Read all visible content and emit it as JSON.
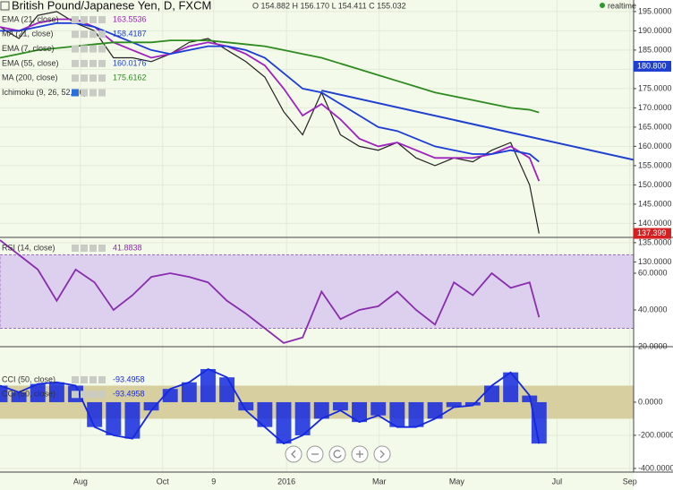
{
  "chart_data": [
    {
      "type": "line",
      "title": "British Pound/Japanese Yen, D, FXCM",
      "subtitle": "O 154.882 H 156.170 L 154.411 C 155.032",
      "annotations": [
        "realtime"
      ],
      "x": [
        0,
        2,
        4,
        6,
        8,
        10,
        12,
        14,
        16,
        18,
        20,
        22,
        24,
        26,
        28,
        30,
        32,
        34,
        36,
        38,
        40,
        42,
        44,
        46,
        48,
        50,
        52,
        54,
        56,
        57
      ],
      "xlim": [
        0,
        67
      ],
      "ylim": [
        130,
        198
      ],
      "yticks": [
        {
          "value": 130,
          "label": "130.0000"
        },
        {
          "value": 135,
          "label": "135.0000"
        },
        {
          "value": 140,
          "label": "140.0000"
        },
        {
          "value": 145,
          "label": "145.0000"
        },
        {
          "value": 150,
          "label": "150.0000"
        },
        {
          "value": 155,
          "label": "155.0000"
        },
        {
          "value": 160,
          "label": "160.0000"
        },
        {
          "value": 165,
          "label": "165.0000"
        },
        {
          "value": 170,
          "label": "170.0000"
        },
        {
          "value": 175,
          "label": "175.0000"
        },
        {
          "value": 180,
          "label": "180.0000"
        },
        {
          "value": 185,
          "label": "185.0000"
        },
        {
          "value": 190,
          "label": "190.0000"
        },
        {
          "value": 195,
          "label": "195.0000"
        }
      ],
      "series": [
        {
          "color": "#222222",
          "values": [
            191,
            188,
            194,
            195,
            192,
            190,
            183,
            183,
            182,
            184,
            187,
            188,
            185,
            182,
            178,
            169,
            163,
            174,
            163,
            160,
            159,
            161,
            157,
            155,
            157,
            156,
            159,
            161,
            150,
            137.4
          ]
        },
        {
          "name": "EMA (21, close)",
          "last": 163.5536,
          "color": "#a020c0",
          "values": [
            191,
            190,
            192,
            193,
            193,
            191,
            187,
            185,
            183,
            184,
            186,
            187,
            186,
            184,
            181,
            175,
            168,
            171,
            167,
            162,
            160,
            161,
            159,
            157,
            157,
            157,
            158,
            160,
            157,
            151
          ]
        },
        {
          "name": "EMA (55, close)",
          "last": 160.0176,
          "color": "#1a3cd8",
          "values": [
            190,
            190,
            191,
            192,
            192,
            191,
            189,
            187,
            185,
            184,
            185,
            186,
            186,
            185,
            183,
            179,
            175,
            174,
            171,
            168,
            165,
            164,
            162,
            160,
            159,
            158,
            158,
            159,
            158,
            156
          ]
        },
        {
          "name": "MA (200, close)",
          "last": 175.6162,
          "color": "#2e8b20",
          "values": [
            183,
            184,
            185,
            185.5,
            186,
            186.5,
            187,
            187,
            187,
            187.5,
            187.5,
            187.5,
            187,
            186.5,
            186,
            185,
            184,
            183,
            181.5,
            180,
            178.5,
            177,
            175.5,
            174,
            173,
            172,
            171,
            170,
            169.5,
            168.8
          ]
        }
      ],
      "other_studies": [
        {
          "name": "MA (21, close)",
          "last": 158.4187,
          "color": "#1a3cd8"
        },
        {
          "name": "EMA (7, close)",
          "color": "#333333"
        },
        {
          "name": "Ichimoku (9, 26, 52, 26)",
          "color": "#8080c0"
        }
      ],
      "trendline": {
        "x": [
          34,
          67
        ],
        "values": [
          174.5,
          156.5
        ],
        "color": "#1f3fd0"
      },
      "price_tags": [
        {
          "value": 180.8,
          "label": "180.800",
          "color": "#1f3fd0"
        },
        {
          "value": 137.399,
          "label": "137.399",
          "color": "#d42020"
        }
      ]
    },
    {
      "type": "line",
      "x": [
        0,
        2,
        4,
        6,
        8,
        10,
        12,
        14,
        16,
        18,
        20,
        22,
        24,
        26,
        28,
        30,
        32,
        34,
        36,
        38,
        40,
        42,
        44,
        46,
        48,
        50,
        52,
        54,
        56,
        57
      ],
      "xlim": [
        0,
        67
      ],
      "ylim": [
        20,
        79.5
      ],
      "yticks": [
        {
          "value": 20,
          "label": "20.0000"
        },
        {
          "value": 40,
          "label": "40.0000"
        },
        {
          "value": 60,
          "label": "60.0000"
        }
      ],
      "band": [
        30,
        70
      ],
      "series": [
        {
          "name": "RSI (14, close)",
          "last": 41.8838,
          "color": "#8a2bb0",
          "values": [
            78,
            70,
            62,
            45,
            62,
            55,
            40,
            48,
            58,
            60,
            58,
            55,
            45,
            38,
            30,
            22,
            25,
            50,
            35,
            40,
            42,
            50,
            40,
            32,
            55,
            48,
            60,
            52,
            55,
            36
          ]
        }
      ]
    },
    {
      "type": "bar",
      "x": [
        0,
        2,
        4,
        6,
        8,
        10,
        12,
        14,
        16,
        18,
        20,
        22,
        24,
        26,
        28,
        30,
        32,
        34,
        36,
        38,
        40,
        42,
        44,
        46,
        48,
        50,
        52,
        54,
        56,
        57
      ],
      "xlim": [
        0,
        67
      ],
      "ylim": [
        -422,
        335
      ],
      "yticks": [
        {
          "value": -400,
          "label": "-400.0000"
        },
        {
          "value": -200,
          "label": "-200.0000"
        },
        {
          "value": 0,
          "label": "0.0000"
        }
      ],
      "band": [
        -100,
        100
      ],
      "xticks": [
        {
          "value": 8.5,
          "label": "Aug"
        },
        {
          "value": 17.2,
          "label": "Oct"
        },
        {
          "value": 22.6,
          "label": "9"
        },
        {
          "value": 30.3,
          "label": "2016"
        },
        {
          "value": 40.1,
          "label": "Mar"
        },
        {
          "value": 48.3,
          "label": "May"
        },
        {
          "value": 58.9,
          "label": "Jul"
        },
        {
          "value": 66.6,
          "label": "Sep"
        }
      ],
      "series": [
        {
          "name": "CCI (50, close)",
          "last": -93.4958,
          "color": "#1428e0",
          "values": [
            100,
            60,
            110,
            120,
            100,
            -150,
            -200,
            -220,
            -50,
            80,
            120,
            200,
            150,
            -50,
            -150,
            -250,
            -200,
            -100,
            -50,
            -120,
            -80,
            -150,
            -150,
            -100,
            -30,
            -20,
            100,
            180,
            40,
            -250
          ]
        },
        {
          "name": "CCI (50, close)",
          "last": -93.4958,
          "color": "#1428e0",
          "values": [
            100,
            60,
            110,
            120,
            100,
            -150,
            -200,
            -220,
            -50,
            80,
            120,
            200,
            150,
            -50,
            -150,
            -250,
            -200,
            -100,
            -50,
            -120,
            -80,
            -150,
            -150,
            -100,
            -30,
            -20,
            100,
            180,
            40,
            -250
          ]
        }
      ]
    }
  ]
}
